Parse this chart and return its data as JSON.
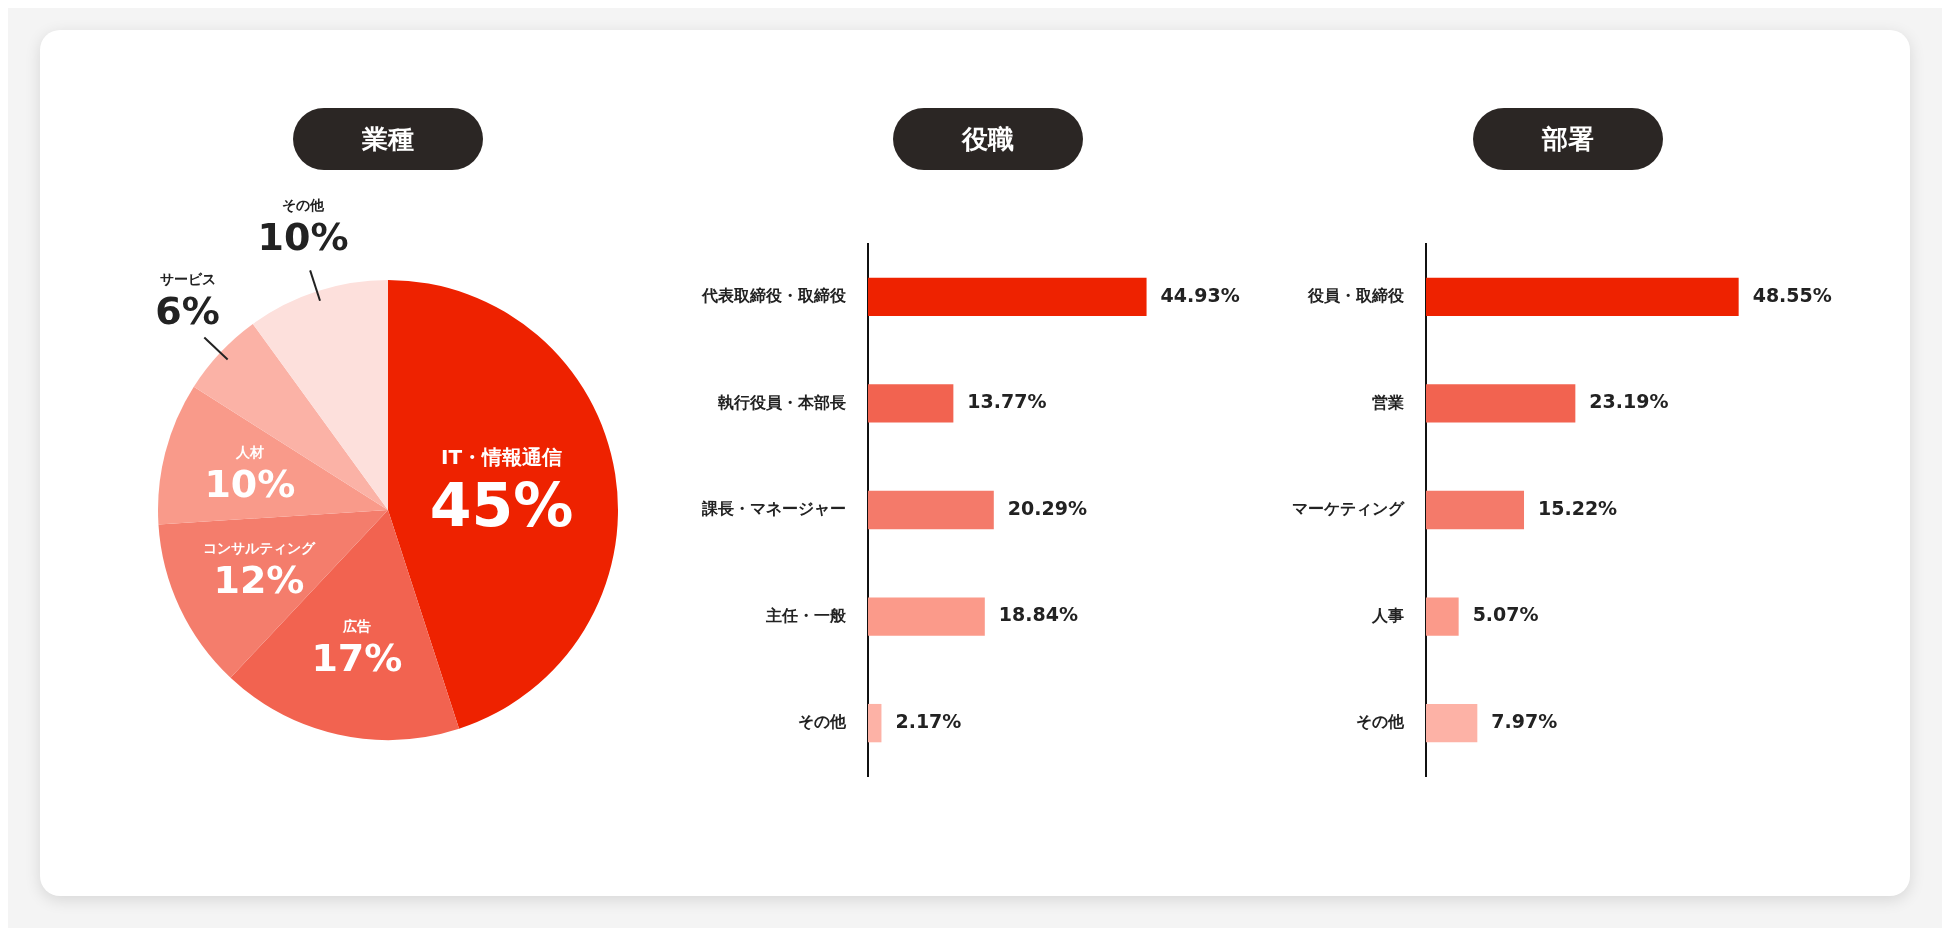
{
  "chart_data": [
    {
      "type": "pie",
      "title": "業種",
      "categories": [
        "IT・情報通信",
        "広告",
        "コンサルティング",
        "人材",
        "サービス",
        "その他"
      ],
      "values": [
        45,
        17,
        12,
        10,
        6,
        10
      ],
      "colors": [
        "#ee2200",
        "#f26350",
        "#f47d6c",
        "#f99a8a",
        "#fbb2a6",
        "#fde0dc"
      ],
      "value_labels": [
        "45%",
        "17%",
        "12%",
        "10%",
        "6%",
        "10%"
      ]
    },
    {
      "type": "bar",
      "orientation": "horizontal",
      "title": "役職",
      "categories": [
        "代表取締役・取締役",
        "執行役員・本部長",
        "課長・マネージャー",
        "主任・一般",
        "その他"
      ],
      "values": [
        44.93,
        13.77,
        20.29,
        18.84,
        2.17
      ],
      "colors": [
        "#ee2200",
        "#f26350",
        "#f47a6a",
        "#fb9a8a",
        "#fdb2a6"
      ],
      "value_labels": [
        "44.93%",
        "13.77%",
        "20.29%",
        "18.84%",
        "2.17%"
      ],
      "tick_labels": "y"
    },
    {
      "type": "bar",
      "orientation": "horizontal",
      "title": "部署",
      "categories": [
        "役員・取締役",
        "営業",
        "マーケティング",
        "人事",
        "その他"
      ],
      "values": [
        48.55,
        23.19,
        15.22,
        5.07,
        7.97
      ],
      "colors": [
        "#ee2200",
        "#f26350",
        "#f47a6a",
        "#fb9a8a",
        "#fdb2a6"
      ],
      "value_labels": [
        "48.55%",
        "23.19%",
        "15.22%",
        "5.07%",
        "7.97%"
      ],
      "tick_labels": "y"
    }
  ]
}
